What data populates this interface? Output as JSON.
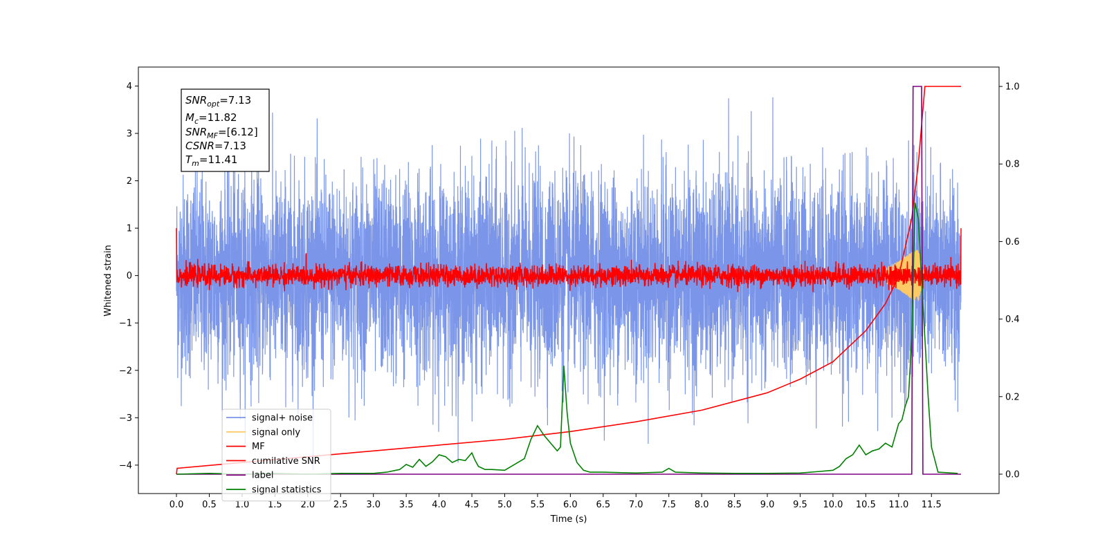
{
  "chart_data": {
    "type": "line",
    "xlabel": "Time (s)",
    "ylabel": "Whitened strain",
    "x_ticks": [
      "0.0",
      "0.5",
      "1.0",
      "1.5",
      "2.0",
      "2.5",
      "3.0",
      "3.5",
      "4.0",
      "4.5",
      "5.0",
      "5.5",
      "6.0",
      "6.5",
      "7.0",
      "7.5",
      "8.0",
      "8.5",
      "9.0",
      "9.5",
      "10.0",
      "10.5",
      "11.0",
      "11.5"
    ],
    "xlim": [
      -0.58,
      12.53
    ],
    "ylim_left": [
      -4.6,
      4.4
    ],
    "ylim_right": [
      -0.05,
      1.05
    ],
    "y_ticks_left": [
      "4",
      "3",
      "2",
      "1",
      "0",
      "−1",
      "−2",
      "−3",
      "−4"
    ],
    "y_ticks_right": [
      "1.0",
      "0.8",
      "0.6",
      "0.4",
      "0.2",
      "0.0"
    ],
    "info_box": {
      "snr_opt": "=7.13",
      "mc": "=11.82",
      "snr_mf": "=[6.12]",
      "csnr": "=7.13",
      "tm": "=11.41"
    },
    "legend": [
      {
        "label": "signal+ noise",
        "color": "#7b96e8"
      },
      {
        "label": "signal only",
        "color": "#ffc966"
      },
      {
        "label": "MF",
        "color": "#ff0000"
      },
      {
        "label": "cumilative SNR",
        "color": "#ff0000"
      },
      {
        "label": "label",
        "color": "#800080"
      },
      {
        "label": "signal statistics",
        "color": "#008000"
      }
    ],
    "series": [
      {
        "name": "signal+ noise",
        "axis": "left",
        "color": "#7b96e8",
        "description": "whitened noise time series, 0-12 s, amplitude approx within ±4"
      },
      {
        "name": "signal only",
        "axis": "left",
        "color": "#ffc966",
        "x": [
          10.8,
          11.0,
          11.2,
          11.3,
          11.4
        ],
        "y_envelope": [
          0.15,
          0.3,
          0.5,
          0.55,
          0.0
        ]
      },
      {
        "name": "MF",
        "axis": "left",
        "color": "#ff0000",
        "description": "matched filter output, amplitude approx within ±0.3"
      },
      {
        "name": "cumilative SNR",
        "axis": "right",
        "color": "#ff0000",
        "x": [
          0.0,
          0.01,
          1.0,
          2.0,
          3.0,
          4.0,
          5.0,
          6.0,
          7.0,
          8.0,
          9.0,
          9.5,
          10.0,
          10.5,
          10.8,
          11.0,
          11.2,
          11.3,
          11.35,
          11.4,
          11.95
        ],
        "y": [
          0.0,
          0.015,
          0.03,
          0.045,
          0.06,
          0.075,
          0.09,
          0.11,
          0.135,
          0.165,
          0.21,
          0.245,
          0.29,
          0.37,
          0.44,
          0.51,
          0.66,
          0.8,
          0.9,
          1.0,
          1.0
        ]
      },
      {
        "name": "label",
        "axis": "right",
        "color": "#800080",
        "x": [
          0.0,
          11.2,
          11.22,
          11.35,
          11.37,
          11.95
        ],
        "y": [
          0.0,
          0.0,
          1.0,
          1.0,
          0.0,
          0.0
        ]
      },
      {
        "name": "signal statistics",
        "axis": "right",
        "color": "#008000",
        "x": [
          0.0,
          0.5,
          1.0,
          1.5,
          2.0,
          2.5,
          3.0,
          3.2,
          3.4,
          3.5,
          3.6,
          3.7,
          3.8,
          3.9,
          4.0,
          4.1,
          4.2,
          4.3,
          4.4,
          4.5,
          4.55,
          4.6,
          4.7,
          4.8,
          5.0,
          5.1,
          5.3,
          5.4,
          5.5,
          5.6,
          5.7,
          5.8,
          5.85,
          5.9,
          5.95,
          6.0,
          6.1,
          6.2,
          6.3,
          6.5,
          7.0,
          7.4,
          7.5,
          7.6,
          8.0,
          8.5,
          9.0,
          9.5,
          9.8,
          10.0,
          10.1,
          10.2,
          10.3,
          10.4,
          10.5,
          10.6,
          10.7,
          10.8,
          10.9,
          11.0,
          11.05,
          11.1,
          11.15,
          11.2,
          11.25,
          11.3,
          11.35,
          11.4,
          11.45,
          11.5,
          11.6,
          11.9
        ],
        "y": [
          0.0,
          0.002,
          0.0,
          0.002,
          0.0,
          0.002,
          0.002,
          0.005,
          0.012,
          0.025,
          0.018,
          0.038,
          0.02,
          0.032,
          0.05,
          0.045,
          0.03,
          0.038,
          0.035,
          0.055,
          0.035,
          0.02,
          0.012,
          0.012,
          0.01,
          0.02,
          0.04,
          0.09,
          0.125,
          0.1,
          0.08,
          0.06,
          0.07,
          0.28,
          0.16,
          0.08,
          0.03,
          0.01,
          0.005,
          0.005,
          0.003,
          0.005,
          0.015,
          0.005,
          0.003,
          0.002,
          0.002,
          0.003,
          0.007,
          0.01,
          0.02,
          0.04,
          0.05,
          0.075,
          0.05,
          0.06,
          0.065,
          0.08,
          0.07,
          0.13,
          0.14,
          0.175,
          0.2,
          0.35,
          0.7,
          0.66,
          0.5,
          0.35,
          0.2,
          0.07,
          0.005,
          0.002
        ]
      }
    ]
  }
}
